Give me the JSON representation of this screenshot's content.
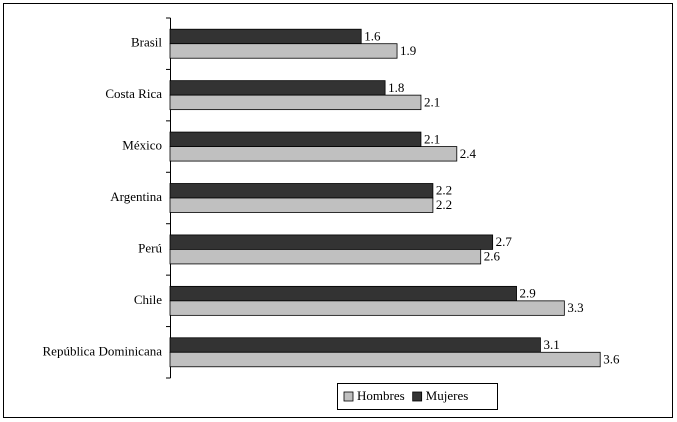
{
  "chart_data": {
    "type": "hbar",
    "categories": [
      "Brasil",
      "Costa Rica",
      "México",
      "Argentina",
      "Perú",
      "Chile",
      "República Dominicana"
    ],
    "series": [
      {
        "name": "Hombres",
        "color": "#c0c0c0",
        "values": [
          1.9,
          2.1,
          2.4,
          2.2,
          2.6,
          3.3,
          3.6
        ]
      },
      {
        "name": "Mujeres",
        "color": "#333333",
        "values": [
          1.6,
          1.8,
          2.1,
          2.2,
          2.7,
          2.9,
          3.1
        ]
      }
    ],
    "xlim": [
      0,
      4
    ],
    "legend": "bottom"
  }
}
